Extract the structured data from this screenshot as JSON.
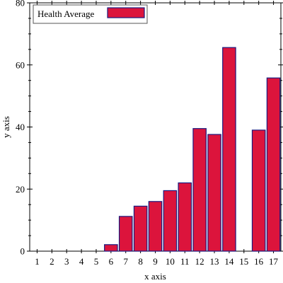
{
  "chart_data": {
    "type": "bar",
    "xlabel": "x axis",
    "ylabel": "y axis",
    "ylim": [
      0,
      80
    ],
    "yticks": [
      0,
      20,
      40,
      60,
      80
    ],
    "categories": [
      "1",
      "2",
      "3",
      "4",
      "5",
      "6",
      "7",
      "8",
      "9",
      "10",
      "11",
      "12",
      "13",
      "14",
      "15",
      "16",
      "17"
    ],
    "series": [
      {
        "name": "Health Average",
        "color": "#dc143c",
        "edge_color": "#1a1a80",
        "values": [
          0,
          0,
          0,
          0,
          0,
          2.1,
          11.2,
          14.5,
          16.0,
          19.5,
          22.0,
          39.5,
          37.6,
          65.6,
          0,
          39.0,
          55.8
        ]
      }
    ],
    "legend": "top-left",
    "grid": false
  }
}
